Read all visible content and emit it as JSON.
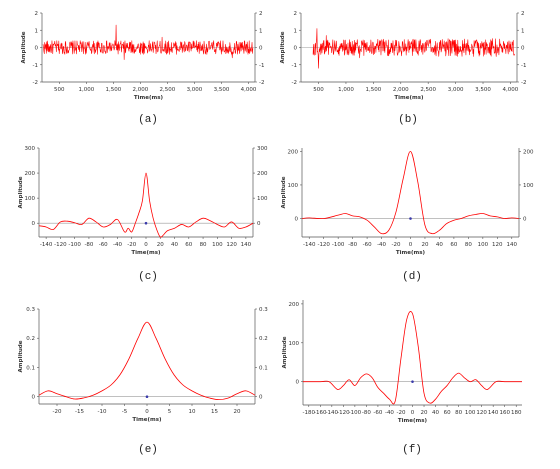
{
  "colors": {
    "trace": "#ff0000",
    "axis": "#555555",
    "marker": "#3a3aaa",
    "zero_line": "#9a9a9a"
  },
  "chart_data": [
    {
      "id": "a",
      "caption": "(a)",
      "type": "line",
      "xlabel": "Time(ms)",
      "ylabel": "Amplitude",
      "xlim": [
        180,
        4120
      ],
      "ylim": [
        -2,
        2
      ],
      "xticks": [
        500,
        1000,
        1500,
        2000,
        2500,
        3000,
        3500,
        4000
      ],
      "xtick_labels": [
        "500",
        "1,000",
        "1,500",
        "2,000",
        "2,500",
        "3,000",
        "3,500",
        "4,000"
      ],
      "yticks": [
        -2,
        -1,
        0,
        1,
        2
      ],
      "ytick_labels": [
        "-2",
        "-1",
        "0",
        "1",
        "2"
      ],
      "right_axis": true,
      "zero_line": true,
      "signal": {
        "kind": "noise",
        "x_start": 200,
        "x_end": 4080,
        "amplitude": 0.4,
        "amplitude_late": 0.4,
        "spikes": [
          [
            1550,
            1.3
          ],
          [
            1700,
            -0.7
          ],
          [
            2400,
            0.6
          ],
          [
            3700,
            -0.6
          ]
        ]
      }
    },
    {
      "id": "b",
      "caption": "(b)",
      "type": "line",
      "xlabel": "Time(ms)",
      "ylabel": "Amplitude",
      "xlim": [
        180,
        4120
      ],
      "ylim": [
        -2,
        2
      ],
      "xticks": [
        500,
        1000,
        1500,
        2000,
        2500,
        3000,
        3500,
        4000
      ],
      "xtick_labels": [
        "500",
        "1,000",
        "1,500",
        "2,000",
        "2,500",
        "3,000",
        "3,500",
        "4,000"
      ],
      "yticks": [
        -2,
        -1,
        0,
        1,
        2
      ],
      "ytick_labels": [
        "-2",
        "-1",
        "0",
        "1",
        "2"
      ],
      "right_axis": true,
      "zero_line": true,
      "signal": {
        "kind": "noise",
        "x_start": 400,
        "x_end": 4080,
        "amplitude": 0.45,
        "amplitude_late": 0.55,
        "spikes": [
          [
            470,
            1.1
          ],
          [
            500,
            -1.2
          ],
          [
            640,
            0.7
          ],
          [
            1250,
            -0.6
          ]
        ]
      }
    },
    {
      "id": "c",
      "caption": "(c)",
      "type": "line",
      "xlabel": "Time(ms)",
      "ylabel": "Amplitude",
      "xlim": [
        -150,
        150
      ],
      "ylim": [
        -55,
        300
      ],
      "xticks": [
        -140,
        -120,
        -100,
        -80,
        -60,
        -40,
        -20,
        0,
        20,
        40,
        60,
        80,
        100,
        120,
        140
      ],
      "xtick_labels": [
        "-140",
        "-120",
        "-100",
        "-80",
        "-60",
        "-40",
        "-20",
        "0",
        "20",
        "40",
        "60",
        "80",
        "100",
        "120",
        "140"
      ],
      "yticks": [
        0,
        100,
        200,
        300
      ],
      "ytick_labels": [
        "0",
        "100",
        "200",
        "300"
      ],
      "right_axis": true,
      "zero_line": true,
      "center_marker": [
        0,
        0
      ],
      "x": [
        -150,
        -140,
        -130,
        -120,
        -110,
        -100,
        -90,
        -80,
        -70,
        -60,
        -50,
        -40,
        -30,
        -25,
        -20,
        -15,
        -10,
        -5,
        0,
        5,
        10,
        15,
        20,
        25,
        30,
        40,
        50,
        60,
        70,
        80,
        90,
        100,
        110,
        120,
        130,
        140,
        150
      ],
      "y": [
        -10,
        -15,
        -25,
        5,
        8,
        2,
        -5,
        20,
        5,
        -15,
        -5,
        15,
        -35,
        -20,
        -35,
        0,
        40,
        90,
        200,
        90,
        20,
        -25,
        -55,
        -45,
        -30,
        -20,
        -5,
        -15,
        5,
        20,
        10,
        -5,
        -15,
        5,
        -20,
        -15,
        0
      ]
    },
    {
      "id": "d",
      "caption": "(d)",
      "type": "line",
      "xlabel": "Time(ms)",
      "ylabel": "Amplitude",
      "xlim": [
        -150,
        150
      ],
      "ylim": [
        -55,
        210
      ],
      "xticks": [
        -140,
        -120,
        -100,
        -80,
        -60,
        -40,
        -20,
        0,
        20,
        40,
        60,
        80,
        100,
        120,
        140
      ],
      "xtick_labels": [
        "-140",
        "-120",
        "-100",
        "-80",
        "-60",
        "-40",
        "-20",
        "0",
        "20",
        "40",
        "60",
        "80",
        "100",
        "120",
        "140"
      ],
      "yticks": [
        0,
        100,
        200
      ],
      "ytick_labels": [
        "0",
        "100",
        "200"
      ],
      "right_axis": true,
      "zero_line": true,
      "center_marker": [
        0,
        0
      ],
      "x": [
        -150,
        -140,
        -120,
        -100,
        -90,
        -80,
        -70,
        -60,
        -50,
        -40,
        -30,
        -20,
        -10,
        0,
        10,
        20,
        30,
        40,
        50,
        60,
        70,
        80,
        90,
        100,
        110,
        120,
        130,
        140,
        150
      ],
      "y": [
        0,
        2,
        0,
        10,
        15,
        8,
        5,
        -5,
        -25,
        -45,
        -35,
        20,
        120,
        200,
        110,
        -20,
        -45,
        -35,
        -15,
        -5,
        0,
        8,
        12,
        15,
        8,
        5,
        0,
        2,
        0
      ]
    },
    {
      "id": "e",
      "caption": "(e)",
      "type": "line",
      "xlabel": "Time(ms)",
      "ylabel": "Amplitude",
      "xlim": [
        -24,
        24
      ],
      "ylim": [
        -0.025,
        0.3
      ],
      "xticks": [
        -20,
        -15,
        -10,
        -5,
        0,
        5,
        10,
        15,
        20
      ],
      "xtick_labels": [
        "-20",
        "-15",
        "-10",
        "-5",
        "0",
        "5",
        "10",
        "15",
        "20"
      ],
      "yticks": [
        0,
        0.1,
        0.2,
        0.3
      ],
      "ytick_labels": [
        "0",
        "0.1",
        "0.2",
        "0.3"
      ],
      "right_axis": true,
      "zero_line": true,
      "center_marker": [
        0,
        0
      ],
      "x": [
        -24,
        -22,
        -20,
        -18,
        -16,
        -14,
        -12,
        -10,
        -8,
        -6,
        -4,
        -2,
        0,
        2,
        4,
        6,
        8,
        10,
        12,
        14,
        16,
        18,
        20,
        22,
        24
      ],
      "y": [
        0.005,
        0.02,
        0.01,
        0.0,
        -0.008,
        -0.004,
        0.005,
        0.02,
        0.04,
        0.075,
        0.13,
        0.2,
        0.255,
        0.2,
        0.13,
        0.075,
        0.04,
        0.02,
        0.005,
        -0.005,
        -0.01,
        -0.005,
        0.01,
        0.02,
        0.005
      ]
    },
    {
      "id": "f",
      "caption": "(f)",
      "type": "line",
      "xlabel": "Time(ms)",
      "ylabel": "Amplitude",
      "xlim": [
        -190,
        190
      ],
      "ylim": [
        -60,
        210
      ],
      "xticks": [
        -180,
        -160,
        -140,
        -120,
        -100,
        -80,
        -60,
        -40,
        -20,
        0,
        20,
        40,
        60,
        80,
        100,
        120,
        140,
        160,
        180
      ],
      "xtick_labels": [
        "-180",
        "-160",
        "-140",
        "-120",
        "-100",
        "-80",
        "-60",
        "-40",
        "-20",
        "0",
        "20",
        "40",
        "60",
        "80",
        "100",
        "120",
        "140",
        "160",
        "180"
      ],
      "yticks": [
        0,
        100,
        200
      ],
      "ytick_labels": [
        "0",
        "100",
        "200"
      ],
      "right_axis": false,
      "zero_line": true,
      "center_marker": [
        0,
        0
      ],
      "x": [
        -190,
        -160,
        -145,
        -130,
        -120,
        -110,
        -100,
        -90,
        -80,
        -70,
        -60,
        -50,
        -40,
        -30,
        -20,
        -10,
        0,
        10,
        20,
        30,
        40,
        50,
        60,
        70,
        80,
        90,
        100,
        110,
        120,
        130,
        145,
        160,
        190
      ],
      "y": [
        0,
        0,
        0,
        -20,
        -10,
        5,
        -10,
        10,
        20,
        10,
        -15,
        -30,
        -45,
        -50,
        60,
        160,
        175,
        90,
        -30,
        -55,
        -45,
        -25,
        -10,
        10,
        22,
        10,
        0,
        5,
        -10,
        -20,
        0,
        0,
        0
      ]
    }
  ]
}
